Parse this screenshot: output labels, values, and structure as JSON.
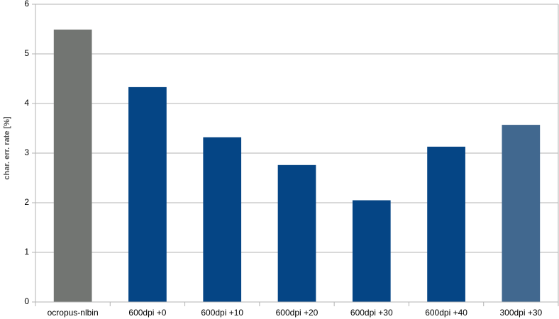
{
  "chart_data": {
    "type": "bar",
    "y_label": "char. err. rate [%]",
    "categories": [
      "ocropus-nlbin",
      "600dpi +0",
      "600dpi +10",
      "600dpi +20",
      "600dpi +30",
      "600dpi +40",
      "300dpi +30"
    ],
    "values": [
      5.49,
      4.33,
      3.32,
      2.76,
      2.05,
      3.13,
      3.57
    ],
    "colors": [
      "#727572",
      "#054585",
      "#054585",
      "#054585",
      "#054585",
      "#054585",
      "#41688f"
    ],
    "ylim": [
      0,
      6
    ],
    "yticks": [
      0,
      1,
      2,
      3,
      4,
      5,
      6
    ],
    "grid": true
  }
}
